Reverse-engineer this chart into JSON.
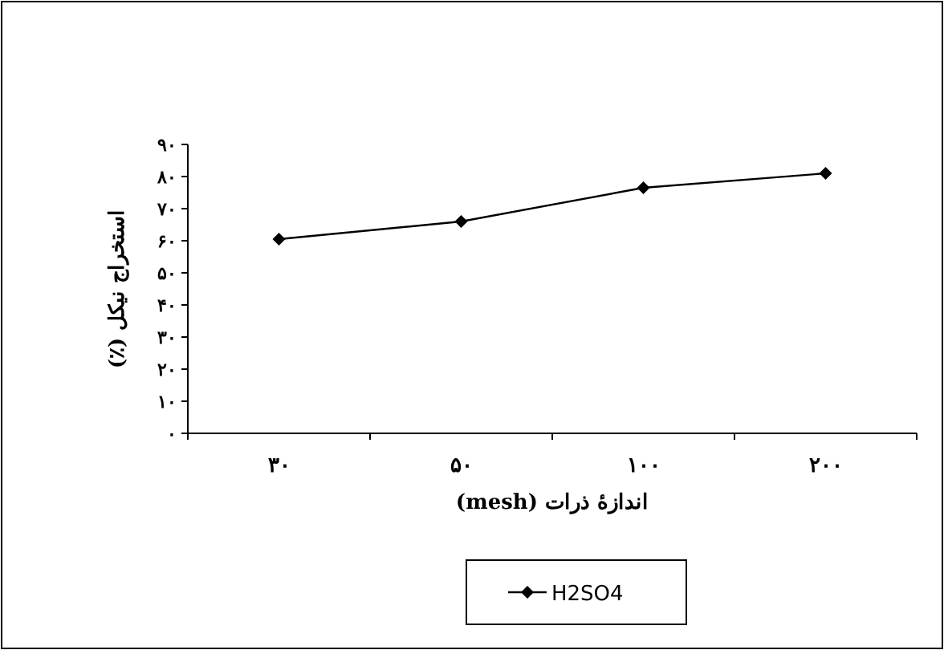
{
  "chart_data": {
    "type": "line",
    "xlabel": "اندازهٔ ذرات (mesh)",
    "ylabel": "استخراج نیکل (٪)",
    "categories": [
      "۳۰",
      "۵۰",
      "۱۰۰",
      "۲۰۰"
    ],
    "series": [
      {
        "name": "H2SO4",
        "color": "#000000",
        "values": [
          60.5,
          66,
          76.5,
          81
        ]
      }
    ],
    "ylim": [
      0,
      90
    ],
    "yticks": [
      {
        "value": 0,
        "label": "۰"
      },
      {
        "value": 10,
        "label": "۱۰"
      },
      {
        "value": 20,
        "label": "۲۰"
      },
      {
        "value": 30,
        "label": "۳۰"
      },
      {
        "value": 40,
        "label": "۴۰"
      },
      {
        "value": 50,
        "label": "۵۰"
      },
      {
        "value": 60,
        "label": "۶۰"
      },
      {
        "value": 70,
        "label": "۷۰"
      },
      {
        "value": 80,
        "label": "۸۰"
      },
      {
        "value": 90,
        "label": "۹۰"
      }
    ],
    "marker": "diamond",
    "line_style": "solid",
    "legend": "bottom",
    "grid": false
  }
}
